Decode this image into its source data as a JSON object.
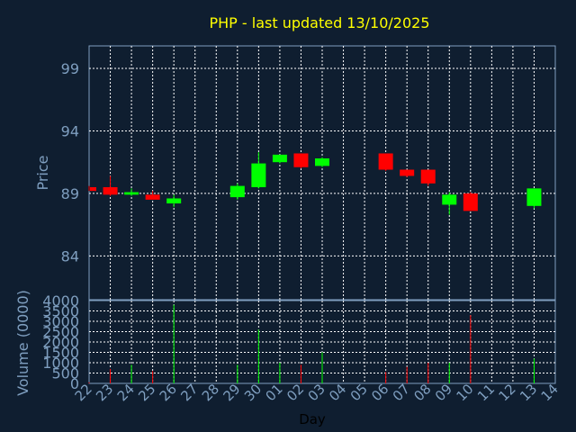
{
  "chart_data": [
    {
      "type": "candlestick",
      "title": "PHP - last updated 13/10/2025",
      "ylabel": "Price",
      "xlabel": "Day",
      "ylim": [
        80.5,
        100.8
      ],
      "yticks": [
        84,
        89,
        94,
        99
      ],
      "grid": true,
      "colors": {
        "up": "#00ff00",
        "down": "#ff0000",
        "wick_up": "#00ff00",
        "wick_down": "#ff0000"
      },
      "x": [
        "22",
        "23",
        "24",
        "25",
        "26",
        "27",
        "28",
        "29",
        "30",
        "01",
        "02",
        "03",
        "04",
        "05",
        "06",
        "07",
        "08",
        "09",
        "10",
        "11",
        "12",
        "13",
        "14"
      ],
      "candles": [
        {
          "day": "22",
          "open": 89.5,
          "high": 89.6,
          "low": 89.2,
          "close": 89.2
        },
        {
          "day": "23",
          "open": 89.5,
          "high": 90.4,
          "low": 88.8,
          "close": 88.9
        },
        {
          "day": "24",
          "open": 88.9,
          "high": 89.4,
          "low": 88.8,
          "close": 89.1
        },
        {
          "day": "25",
          "open": 88.9,
          "high": 89.2,
          "low": 88.5,
          "close": 88.5
        },
        {
          "day": "26",
          "open": 88.2,
          "high": 88.9,
          "low": 87.9,
          "close": 88.6
        },
        {
          "day": "29",
          "open": 88.7,
          "high": 89.8,
          "low": 88.5,
          "close": 89.6
        },
        {
          "day": "30",
          "open": 89.5,
          "high": 92.3,
          "low": 89.4,
          "close": 91.4
        },
        {
          "day": "01",
          "open": 91.5,
          "high": 92.1,
          "low": 91.4,
          "close": 92.1
        },
        {
          "day": "02",
          "open": 92.2,
          "high": 92.2,
          "low": 91.0,
          "close": 91.1
        },
        {
          "day": "03",
          "open": 91.2,
          "high": 91.9,
          "low": 91.1,
          "close": 91.8
        },
        {
          "day": "06",
          "open": 92.2,
          "high": 92.2,
          "low": 90.8,
          "close": 90.9
        },
        {
          "day": "07",
          "open": 90.9,
          "high": 90.9,
          "low": 90.3,
          "close": 90.4
        },
        {
          "day": "08",
          "open": 90.9,
          "high": 90.9,
          "low": 89.6,
          "close": 89.8
        },
        {
          "day": "09",
          "open": 88.1,
          "high": 89.1,
          "low": 87.3,
          "close": 88.9
        },
        {
          "day": "10",
          "open": 89.0,
          "high": 89.1,
          "low": 87.6,
          "close": 87.6
        },
        {
          "day": "13",
          "open": 88.0,
          "high": 89.4,
          "low": 87.8,
          "close": 89.4
        }
      ]
    },
    {
      "type": "bar",
      "ylabel": "Volume (0000)",
      "ylim": [
        0,
        4000
      ],
      "yticks": [
        0,
        500,
        1000,
        1500,
        2000,
        2500,
        3000,
        3500,
        4000
      ],
      "grid": true,
      "x": [
        "22",
        "23",
        "24",
        "25",
        "26",
        "27",
        "28",
        "29",
        "30",
        "01",
        "02",
        "03",
        "04",
        "05",
        "06",
        "07",
        "08",
        "09",
        "10",
        "11",
        "12",
        "13",
        "14"
      ],
      "bars": [
        {
          "day": "22",
          "value": 50,
          "direction": "down"
        },
        {
          "day": "23",
          "value": 700,
          "direction": "down"
        },
        {
          "day": "24",
          "value": 900,
          "direction": "up"
        },
        {
          "day": "25",
          "value": 600,
          "direction": "down"
        },
        {
          "day": "26",
          "value": 3800,
          "direction": "up"
        },
        {
          "day": "29",
          "value": 900,
          "direction": "up"
        },
        {
          "day": "30",
          "value": 2600,
          "direction": "up"
        },
        {
          "day": "01",
          "value": 1000,
          "direction": "up"
        },
        {
          "day": "02",
          "value": 900,
          "direction": "down"
        },
        {
          "day": "03",
          "value": 1500,
          "direction": "up"
        },
        {
          "day": "06",
          "value": 550,
          "direction": "down"
        },
        {
          "day": "07",
          "value": 800,
          "direction": "down"
        },
        {
          "day": "08",
          "value": 1000,
          "direction": "down"
        },
        {
          "day": "09",
          "value": 1000,
          "direction": "up"
        },
        {
          "day": "10",
          "value": 3300,
          "direction": "down"
        },
        {
          "day": "13",
          "value": 1200,
          "direction": "up"
        }
      ]
    }
  ]
}
